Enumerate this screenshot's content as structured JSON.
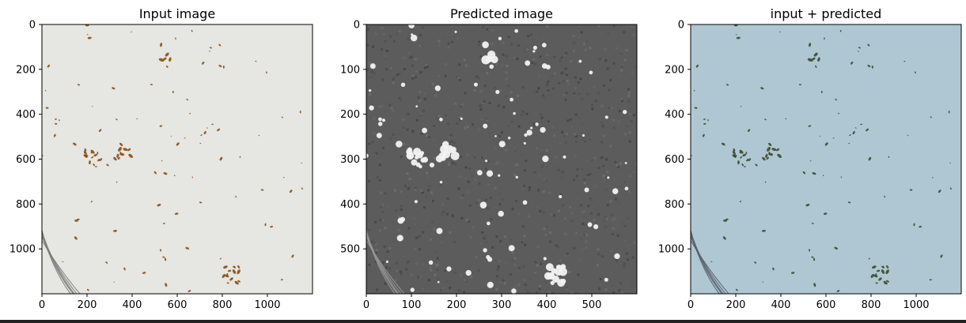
{
  "chart_data": [
    {
      "type": "image",
      "title": "Input image",
      "xlim": [
        0,
        1200
      ],
      "ylim": [
        1200,
        0
      ],
      "xticks": [
        0,
        200,
        400,
        600,
        800,
        1000
      ],
      "yticks": [
        0,
        200,
        400,
        600,
        800,
        1000
      ],
      "colors": {
        "background": "#e6e6e2",
        "spots": "#8a4e12",
        "edge": "#777777"
      }
    },
    {
      "type": "image",
      "title": "Predicted image",
      "xlim": [
        0,
        600
      ],
      "ylim": [
        600,
        0
      ],
      "xticks": [
        0,
        100,
        200,
        300,
        400,
        500
      ],
      "yticks": [
        0,
        100,
        200,
        300,
        400,
        500
      ],
      "colors": {
        "background": "#5c5c5c",
        "spots": "#f2f2f2",
        "edge": "#999999"
      }
    },
    {
      "type": "image",
      "title": "input + predicted",
      "xlim": [
        0,
        1200
      ],
      "ylim": [
        1200,
        0
      ],
      "xticks": [
        0,
        200,
        400,
        600,
        800,
        1000
      ],
      "yticks": [
        0,
        200,
        400,
        600,
        800,
        1000
      ],
      "colors": {
        "background": "#aec7d3",
        "spots": "#3d4a2c",
        "edge": "#555e66"
      }
    }
  ]
}
